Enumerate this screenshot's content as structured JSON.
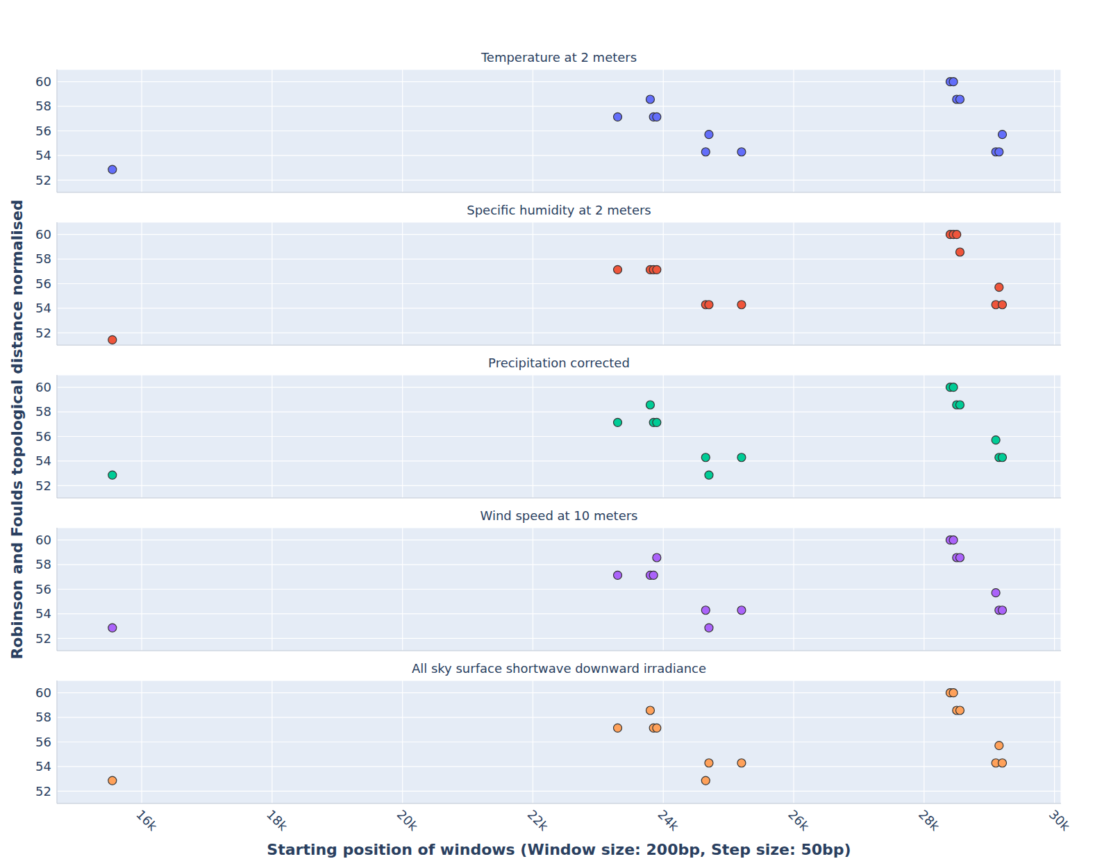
{
  "chart_data": [
    {
      "type": "scatter",
      "title": "Temperature at 2 meters",
      "color": "#636efa",
      "marker": "circle",
      "x": [
        15550,
        23300,
        23800,
        23850,
        23900,
        24700,
        24650,
        25200,
        28400,
        28450,
        28500,
        28550,
        29200,
        29100,
        29150
      ],
      "values": [
        52.86,
        57.14,
        58.57,
        57.14,
        57.14,
        55.71,
        54.29,
        54.29,
        60,
        60,
        58.57,
        58.57,
        55.71,
        54.29,
        54.29
      ],
      "xlim": [
        14700,
        30100
      ],
      "xticks": [
        {
          "value": 16000,
          "label": "16k"
        },
        {
          "value": 18000,
          "label": "18k"
        },
        {
          "value": 20000,
          "label": "20k"
        },
        {
          "value": 22000,
          "label": "22k"
        },
        {
          "value": 24000,
          "label": "24k"
        },
        {
          "value": 26000,
          "label": "26k"
        },
        {
          "value": 28000,
          "label": "28k"
        },
        {
          "value": 30000,
          "label": "30k"
        }
      ],
      "ylim": [
        51,
        61
      ],
      "yticks": [
        52,
        54,
        56,
        58,
        60
      ],
      "grid": true,
      "tick_labels": "y"
    },
    {
      "type": "scatter",
      "title": "Specific humidity at 2 meters",
      "color": "#EF553B",
      "marker": "circle",
      "x": [
        15550,
        23300,
        23800,
        23850,
        23900,
        24650,
        24700,
        25200,
        28400,
        28450,
        28500,
        28550,
        29150,
        29100,
        29200
      ],
      "values": [
        51.43,
        57.14,
        57.14,
        57.14,
        57.14,
        54.29,
        54.29,
        54.29,
        60,
        60,
        60,
        58.57,
        55.71,
        54.29,
        54.29
      ],
      "xlim": [
        14700,
        30100
      ],
      "xticks": [
        {
          "value": 16000,
          "label": "16k"
        },
        {
          "value": 18000,
          "label": "18k"
        },
        {
          "value": 20000,
          "label": "20k"
        },
        {
          "value": 22000,
          "label": "22k"
        },
        {
          "value": 24000,
          "label": "24k"
        },
        {
          "value": 26000,
          "label": "26k"
        },
        {
          "value": 28000,
          "label": "28k"
        },
        {
          "value": 30000,
          "label": "30k"
        }
      ],
      "ylim": [
        51,
        61
      ],
      "yticks": [
        52,
        54,
        56,
        58,
        60
      ],
      "grid": true,
      "tick_labels": "y"
    },
    {
      "type": "scatter",
      "title": "Precipitation corrected",
      "color": "#00cc96",
      "marker": "circle",
      "ylabel": "Robinson and Foulds topological distance normalised",
      "x": [
        15550,
        23300,
        23800,
        23850,
        23900,
        24650,
        25200,
        24700,
        28400,
        28450,
        28500,
        28550,
        29100,
        29150,
        29200
      ],
      "values": [
        52.86,
        57.14,
        58.57,
        57.14,
        57.14,
        54.29,
        54.29,
        52.86,
        60,
        60,
        58.57,
        58.57,
        55.71,
        54.29,
        54.29
      ],
      "xlim": [
        14700,
        30100
      ],
      "xticks": [
        {
          "value": 16000,
          "label": "16k"
        },
        {
          "value": 18000,
          "label": "18k"
        },
        {
          "value": 20000,
          "label": "20k"
        },
        {
          "value": 22000,
          "label": "22k"
        },
        {
          "value": 24000,
          "label": "24k"
        },
        {
          "value": 26000,
          "label": "26k"
        },
        {
          "value": 28000,
          "label": "28k"
        },
        {
          "value": 30000,
          "label": "30k"
        }
      ],
      "ylim": [
        51,
        61
      ],
      "yticks": [
        52,
        54,
        56,
        58,
        60
      ],
      "grid": true,
      "tick_labels": "y"
    },
    {
      "type": "scatter",
      "title": "Wind speed at 10 meters",
      "color": "#ab63fa",
      "marker": "circle",
      "x": [
        15550,
        23300,
        23900,
        23800,
        23850,
        24650,
        25200,
        24700,
        28400,
        28450,
        28500,
        28550,
        29100,
        29150,
        29200
      ],
      "values": [
        52.86,
        57.14,
        58.57,
        57.14,
        57.14,
        54.29,
        54.29,
        52.86,
        60,
        60,
        58.57,
        58.57,
        55.71,
        54.29,
        54.29
      ],
      "xlim": [
        14700,
        30100
      ],
      "xticks": [
        {
          "value": 16000,
          "label": "16k"
        },
        {
          "value": 18000,
          "label": "18k"
        },
        {
          "value": 20000,
          "label": "20k"
        },
        {
          "value": 22000,
          "label": "22k"
        },
        {
          "value": 24000,
          "label": "24k"
        },
        {
          "value": 26000,
          "label": "26k"
        },
        {
          "value": 28000,
          "label": "28k"
        },
        {
          "value": 30000,
          "label": "30k"
        }
      ],
      "ylim": [
        51,
        61
      ],
      "yticks": [
        52,
        54,
        56,
        58,
        60
      ],
      "grid": true,
      "tick_labels": "y"
    },
    {
      "type": "scatter",
      "title": "All sky surface shortwave downward irradiance",
      "color": "#FFA15A",
      "marker": "circle",
      "xlabel": "Starting position of windows (Window size: 200bp, Step size: 50bp)",
      "x": [
        15550,
        23300,
        23800,
        23850,
        23900,
        24700,
        25200,
        24650,
        28400,
        28450,
        28500,
        28550,
        29150,
        29100,
        29200
      ],
      "values": [
        52.86,
        57.14,
        58.57,
        57.14,
        57.14,
        54.29,
        54.29,
        52.86,
        60,
        60,
        58.57,
        58.57,
        55.71,
        54.29,
        54.29
      ],
      "xlim": [
        14700,
        30100
      ],
      "xticks": [
        {
          "value": 16000,
          "label": "16k"
        },
        {
          "value": 18000,
          "label": "18k"
        },
        {
          "value": 20000,
          "label": "20k"
        },
        {
          "value": 22000,
          "label": "22k"
        },
        {
          "value": 24000,
          "label": "24k"
        },
        {
          "value": 26000,
          "label": "26k"
        },
        {
          "value": 28000,
          "label": "28k"
        },
        {
          "value": 30000,
          "label": "30k"
        }
      ],
      "ylim": [
        51,
        61
      ],
      "yticks": [
        52,
        54,
        56,
        58,
        60
      ],
      "grid": true,
      "tick_labels": true
    }
  ]
}
